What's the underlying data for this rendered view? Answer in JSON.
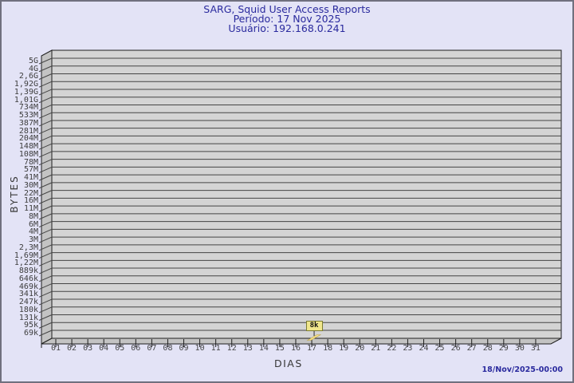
{
  "page": {
    "background": "#e3e3f6",
    "border_color": "#70707e",
    "accent_navy": "#2a2a9e"
  },
  "header": {
    "title": "SARG, Squid User Access Reports",
    "period_line": "Período: 17 Nov 2025",
    "user_line": "Usuário: 192.168.0.241"
  },
  "footer": {
    "timestamp": "18/Nov/2025-00:00"
  },
  "chart_data": {
    "type": "bar",
    "title": "SARG, Squid User Access Reports",
    "subtitle": "Período: 17 Nov 2025 — Usuário: 192.168.0.241",
    "xlabel": "DIAS",
    "ylabel": "BYTES",
    "y_scale": "log",
    "y_tick_labels_top_to_bottom": [
      "5G",
      "4G",
      "2,6G",
      "1,92G",
      "1,39G",
      "1,01G",
      "734M",
      "533M",
      "387M",
      "281M",
      "204M",
      "148M",
      "108M",
      "78M",
      "57M",
      "41M",
      "30M",
      "22M",
      "16M",
      "11M",
      "8M",
      "6M",
      "4M",
      "3M",
      "2,3M",
      "1,69M",
      "1,22M",
      "889k",
      "646k",
      "469k",
      "341k",
      "247k",
      "180k",
      "131k",
      "95k",
      "69k"
    ],
    "x_categories": [
      "01",
      "02",
      "03",
      "04",
      "05",
      "06",
      "07",
      "08",
      "09",
      "10",
      "11",
      "12",
      "13",
      "14",
      "15",
      "16",
      "17",
      "18",
      "19",
      "20",
      "21",
      "22",
      "23",
      "24",
      "25",
      "26",
      "27",
      "28",
      "29",
      "30",
      "31"
    ],
    "series": [
      {
        "name": "bytes-per-day",
        "points": [
          {
            "day": "17",
            "value_label": "8k"
          }
        ]
      }
    ],
    "annotation": {
      "text": "8k",
      "day": "17"
    },
    "legend": "none",
    "grid": "horizontal-log",
    "colors": {
      "plot_bg": "#d4d4d4",
      "wall": "#c3c3c3",
      "grid_line": "#454545",
      "frame_line": "#1e1e1e",
      "bar_fill": "#f6e187",
      "bar_edge": "#b9a34a",
      "flag_bg": "#f0e68c",
      "flag_border": "#7c7c2e"
    }
  }
}
